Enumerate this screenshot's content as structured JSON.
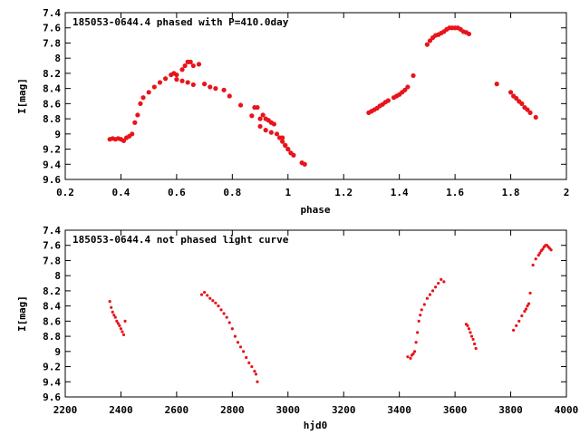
{
  "colors": {
    "points": "#e8141b",
    "frame": "#000000",
    "background": "#ffffff"
  },
  "chart_data": [
    {
      "type": "scatter",
      "title": "185053-0644.4 phased with P=410.0day",
      "xlabel": "phase",
      "ylabel": "I[mag]",
      "xlim": [
        0.2,
        2
      ],
      "ylim": [
        9.6,
        7.4
      ],
      "y_inverted": true,
      "marker": "large-dot",
      "xticks": [
        "0.2",
        "0.4",
        "0.6",
        "0.8",
        "1",
        "1.2",
        "1.4",
        "1.6",
        "1.8",
        "2"
      ],
      "yticks": [
        "7.4",
        "7.6",
        "7.8",
        "8",
        "8.2",
        "8.4",
        "8.6",
        "8.8",
        "9",
        "9.2",
        "9.4",
        "9.6"
      ],
      "series": [
        {
          "x": [
            0.36,
            0.37,
            0.38,
            0.39,
            0.4,
            0.41,
            0.42,
            0.43,
            0.44,
            0.45,
            0.46,
            0.47,
            0.48,
            0.5,
            0.52,
            0.54,
            0.56,
            0.58,
            0.59,
            0.6,
            0.62,
            0.63,
            0.64,
            0.65,
            0.66,
            0.68,
            0.7,
            0.72,
            0.74,
            0.77,
            0.79,
            0.83,
            0.87,
            0.88,
            0.89,
            0.9,
            0.91,
            0.92,
            0.93,
            0.94,
            0.95,
            0.97,
            0.98,
            0.99,
            1.0,
            1.01,
            1.02,
            1.05,
            1.06,
            0.6,
            0.62,
            0.64,
            0.66,
            0.9,
            0.92,
            0.94,
            0.96,
            0.98,
            0.99,
            1.0
          ],
          "y": [
            9.07,
            9.06,
            9.07,
            9.06,
            9.07,
            9.09,
            9.05,
            9.03,
            9.0,
            8.85,
            8.75,
            8.6,
            8.52,
            8.45,
            8.38,
            8.32,
            8.27,
            8.22,
            8.2,
            8.22,
            8.15,
            8.1,
            8.05,
            8.05,
            8.1,
            8.08,
            8.34,
            8.38,
            8.4,
            8.42,
            8.5,
            8.62,
            8.76,
            8.65,
            8.65,
            8.8,
            8.75,
            8.8,
            8.82,
            8.85,
            8.87,
            9.05,
            9.1,
            9.15,
            9.2,
            9.25,
            9.28,
            9.38,
            9.4,
            8.28,
            8.3,
            8.32,
            8.35,
            8.9,
            8.95,
            8.98,
            9.0,
            9.05,
            9.15,
            9.2
          ]
        },
        {
          "x": [
            1.29,
            1.3,
            1.31,
            1.32,
            1.33,
            1.34,
            1.35,
            1.36,
            1.38,
            1.39,
            1.4,
            1.41,
            1.42,
            1.43,
            1.45,
            1.5,
            1.51,
            1.52,
            1.53,
            1.54,
            1.55,
            1.56,
            1.57,
            1.58,
            1.59,
            1.6,
            1.61,
            1.62,
            1.63,
            1.64,
            1.65,
            1.75,
            1.8,
            1.81,
            1.82,
            1.83,
            1.84,
            1.85,
            1.86,
            1.87,
            1.89
          ],
          "y": [
            8.72,
            8.7,
            8.68,
            8.66,
            8.63,
            8.61,
            8.58,
            8.56,
            8.52,
            8.5,
            8.48,
            8.45,
            8.42,
            8.38,
            8.23,
            7.82,
            7.77,
            7.73,
            7.7,
            7.69,
            7.67,
            7.65,
            7.62,
            7.6,
            7.6,
            7.6,
            7.6,
            7.62,
            7.65,
            7.66,
            7.68,
            8.34,
            8.45,
            8.5,
            8.53,
            8.57,
            8.6,
            8.65,
            8.68,
            8.72,
            8.78
          ]
        }
      ]
    },
    {
      "type": "scatter",
      "title": "185053-0644.4 not phased light curve",
      "xlabel": "hjd0",
      "ylabel": "I[mag]",
      "xlim": [
        2200,
        4000
      ],
      "ylim": [
        9.6,
        7.4
      ],
      "y_inverted": true,
      "marker": "small-dot",
      "xticks": [
        "2200",
        "2400",
        "2600",
        "2800",
        "3000",
        "3200",
        "3400",
        "3600",
        "3800",
        "4000"
      ],
      "yticks": [
        "7.4",
        "7.6",
        "7.8",
        "8",
        "8.2",
        "8.4",
        "8.6",
        "8.8",
        "9",
        "9.2",
        "9.4",
        "9.6"
      ],
      "series": [
        {
          "x": [
            2360,
            2365,
            2370,
            2375,
            2380,
            2385,
            2390,
            2395,
            2400,
            2405,
            2410,
            2415,
            2690,
            2700,
            2710,
            2720,
            2730,
            2740,
            2750,
            2760,
            2770,
            2780,
            2790,
            2800,
            2810,
            2820,
            2830,
            2840,
            2850,
            2860,
            2870,
            2880,
            2885,
            2890,
            3430,
            3440,
            3445,
            3450,
            3455,
            3460,
            3465,
            3470,
            3475,
            3480,
            3490,
            3500,
            3510,
            3520,
            3530,
            3540,
            3550,
            3560,
            3640,
            3645,
            3650,
            3655,
            3660,
            3665,
            3670,
            3675,
            3810,
            3820,
            3830,
            3840,
            3850,
            3855,
            3860,
            3865,
            3870,
            3880,
            3890,
            3900,
            3905,
            3910,
            3915,
            3920,
            3925,
            3930,
            3935,
            3940,
            3945
          ],
          "y": [
            8.34,
            8.42,
            8.48,
            8.52,
            8.55,
            8.6,
            8.63,
            8.66,
            8.7,
            8.74,
            8.78,
            8.6,
            8.25,
            8.22,
            8.26,
            8.3,
            8.33,
            8.36,
            8.4,
            8.45,
            8.5,
            8.55,
            8.62,
            8.7,
            8.8,
            8.88,
            8.94,
            9.0,
            9.08,
            9.15,
            9.2,
            9.26,
            9.3,
            9.4,
            9.07,
            9.09,
            9.05,
            9.03,
            9.0,
            8.88,
            8.75,
            8.6,
            8.52,
            8.45,
            8.38,
            8.3,
            8.25,
            8.2,
            8.15,
            8.1,
            8.05,
            8.08,
            8.64,
            8.66,
            8.7,
            8.75,
            8.8,
            8.84,
            8.9,
            8.96,
            8.72,
            8.66,
            8.6,
            8.53,
            8.47,
            8.44,
            8.4,
            8.37,
            8.23,
            7.86,
            7.78,
            7.73,
            7.7,
            7.67,
            7.65,
            7.62,
            7.6,
            7.6,
            7.62,
            7.64,
            7.66
          ]
        }
      ]
    }
  ]
}
